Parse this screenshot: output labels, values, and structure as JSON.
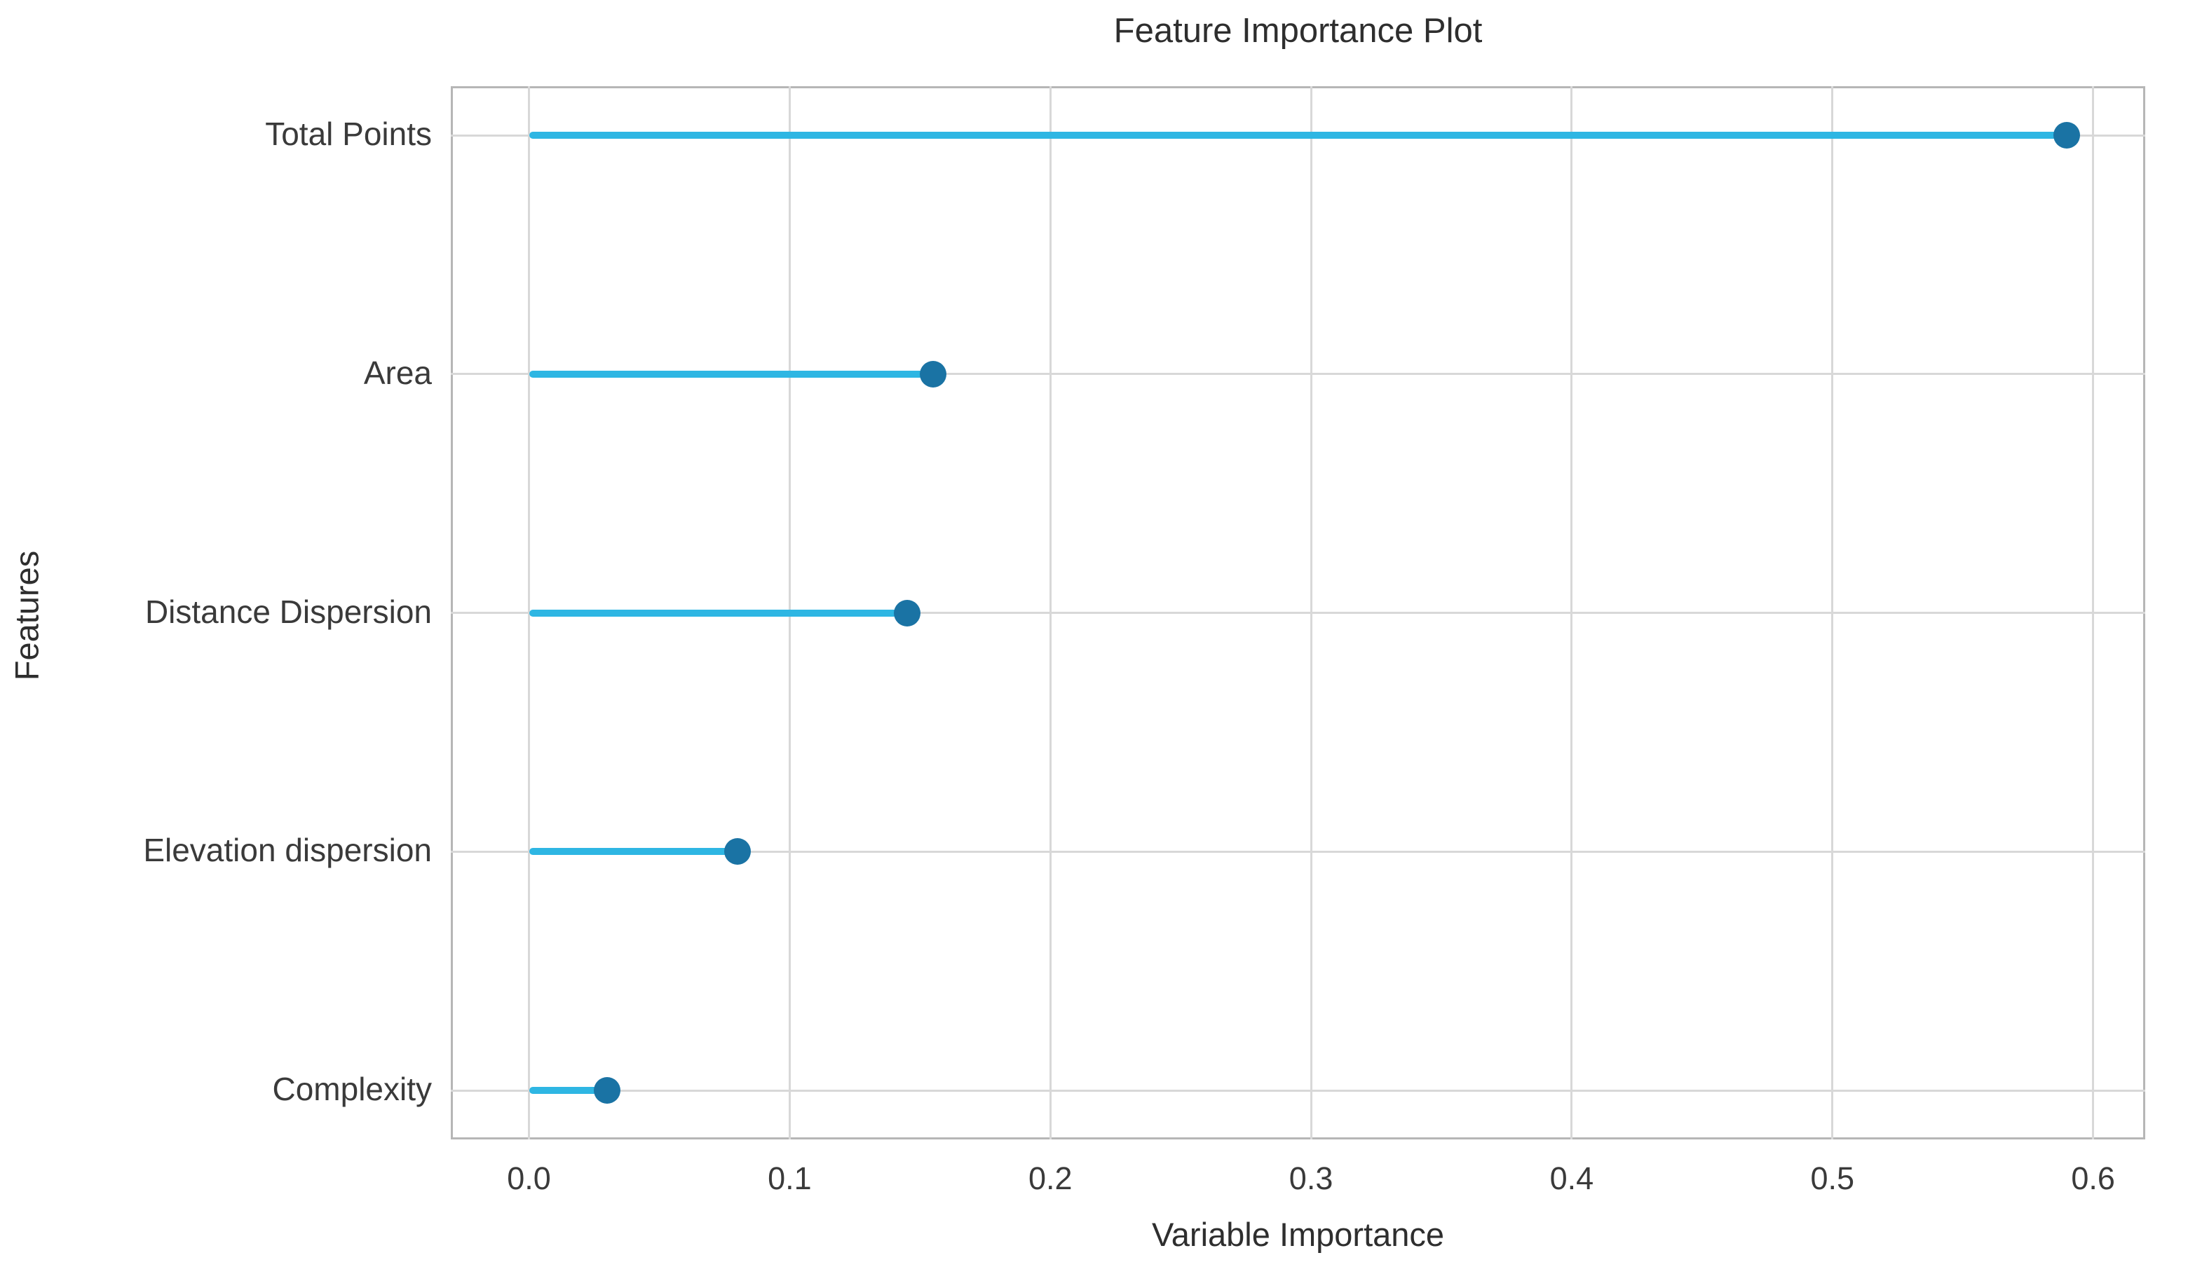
{
  "chart_data": {
    "type": "bar",
    "variant": "lollipop",
    "orientation": "horizontal",
    "title": "Feature Importance Plot",
    "xlabel": "Variable Importance",
    "ylabel": "Features",
    "categories": [
      "Total Points",
      "Area",
      "Distance Dispersion",
      "Elevation dispersion",
      "Complexity"
    ],
    "values": [
      0.59,
      0.155,
      0.145,
      0.08,
      0.03
    ],
    "x_ticks": [
      0.0,
      0.1,
      0.2,
      0.3,
      0.4,
      0.5,
      0.6
    ],
    "x_tick_labels": [
      "0.0",
      "0.1",
      "0.2",
      "0.3",
      "0.4",
      "0.5",
      "0.6"
    ],
    "xlim": [
      -0.03,
      0.62
    ],
    "grid": true,
    "legend": null,
    "colors": {
      "stem": "#2eb6e3",
      "marker": "#1a73a4",
      "grid": "#d8d8d8",
      "spine": "#b6b6b6",
      "text": "#3a3a3a"
    }
  }
}
